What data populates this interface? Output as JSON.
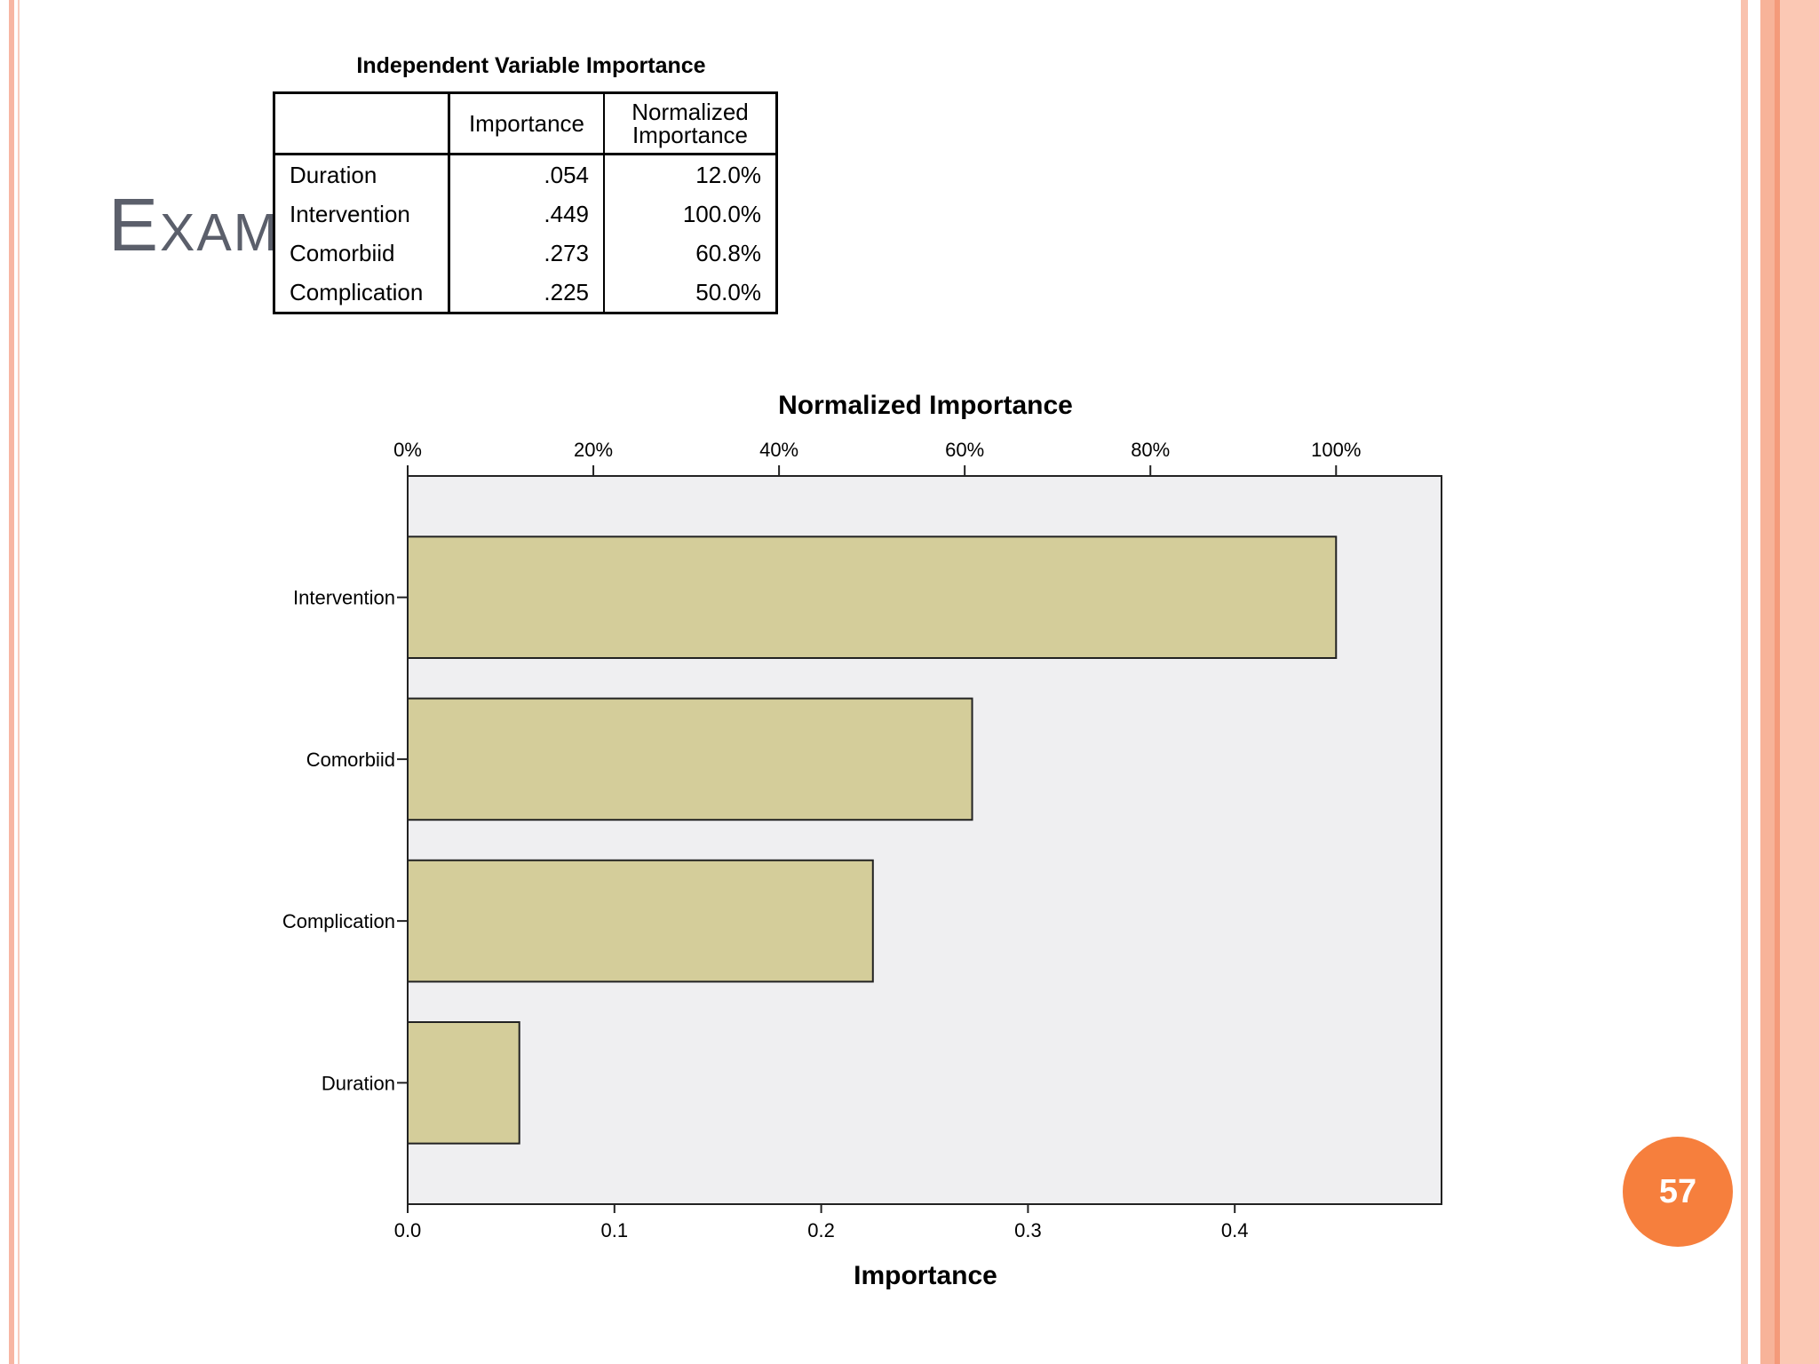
{
  "slide": {
    "title": "Example",
    "page_number": "57"
  },
  "table": {
    "title": "Independent Variable Importance",
    "headers": [
      "",
      "Importance",
      "Normalized Importance"
    ],
    "rows": [
      {
        "name": "Duration",
        "importance": ".054",
        "normalized": "12.0%"
      },
      {
        "name": "Intervention",
        "importance": ".449",
        "normalized": "100.0%"
      },
      {
        "name": "Comorbiid",
        "importance": ".273",
        "normalized": "60.8%"
      },
      {
        "name": "Complication",
        "importance": ".225",
        "normalized": "50.0%"
      }
    ]
  },
  "chart_data": {
    "type": "bar",
    "orientation": "horizontal",
    "title": "Normalized Importance",
    "xlabel": "Importance",
    "categories": [
      "Intervention",
      "Comorbiid",
      "Complication",
      "Duration"
    ],
    "values": [
      0.449,
      0.273,
      0.225,
      0.054
    ],
    "xlim": [
      0,
      0.5
    ],
    "x_ticks": [
      "0.0",
      "0.1",
      "0.2",
      "0.3",
      "0.4"
    ],
    "x_tick_values": [
      0,
      0.1,
      0.2,
      0.3,
      0.4
    ],
    "top_axis_ticks": [
      "0%",
      "20%",
      "40%",
      "60%",
      "80%",
      "100%"
    ],
    "top_axis_values": [
      0,
      20,
      40,
      60,
      80,
      100
    ],
    "top_axis_max_importance": 0.449,
    "colors": {
      "bar": "#d4cd9a",
      "plot_bg": "#efeff1",
      "stroke": "#222222"
    },
    "grid": false
  }
}
